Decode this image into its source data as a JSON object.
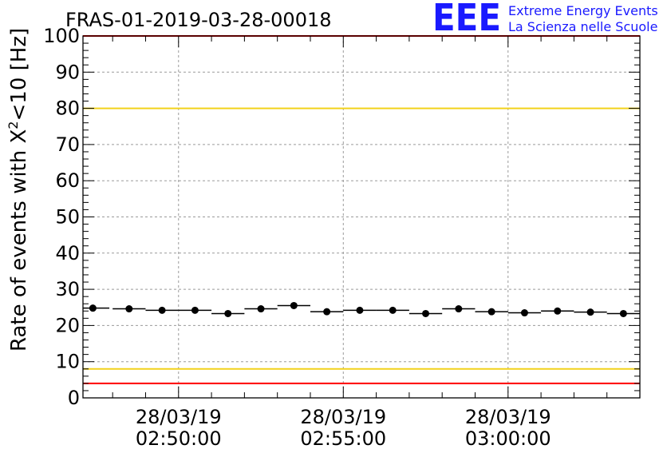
{
  "chart_data": {
    "type": "scatter",
    "title": "FRAS-01-2019-03-28-00018",
    "ylabel": "Rate of events with X²<10 [Hz]",
    "ylabel_parts": {
      "main": "Rate of events with X",
      "sup": "2",
      "tail": "<10 [Hz]"
    },
    "xlabel": "",
    "ylim": [
      0,
      100
    ],
    "yticks": [
      "0",
      "10",
      "20",
      "30",
      "40",
      "50",
      "60",
      "70",
      "80",
      "90",
      "100"
    ],
    "xlim_minutes": [
      -2.9,
      14.0
    ],
    "xtick_labels": [
      {
        "t": 0,
        "date": "28/03/19",
        "time": "02:50:00"
      },
      {
        "t": 5,
        "date": "28/03/19",
        "time": "02:55:00"
      },
      {
        "t": 10,
        "date": "28/03/19",
        "time": "03:00:00"
      }
    ],
    "grid": true,
    "bin_minutes": 1.0,
    "series": [
      {
        "name": "rate",
        "color": "#000000",
        "x": [
          -2.6,
          -1.5,
          -0.5,
          0.5,
          1.5,
          2.5,
          3.5,
          4.5,
          5.5,
          6.5,
          7.5,
          8.5,
          9.5,
          10.5,
          11.5,
          12.5,
          13.5
        ],
        "values": [
          24.8,
          24.6,
          24.2,
          24.2,
          23.3,
          24.6,
          25.5,
          23.8,
          24.2,
          24.2,
          23.3,
          24.6,
          23.8,
          23.5,
          24.0,
          23.7,
          23.3
        ]
      }
    ],
    "reference_lines": [
      {
        "name": "upper-red",
        "value": 100,
        "color": "#ff0000"
      },
      {
        "name": "upper-yellow",
        "value": 80,
        "color": "#f2d21b"
      },
      {
        "name": "lower-yellow",
        "value": 8,
        "color": "#f2d21b"
      },
      {
        "name": "lower-red",
        "value": 4,
        "color": "#ff0000"
      }
    ]
  },
  "logo": {
    "text": "EEE",
    "line1": "Extreme Energy Events",
    "line2": "La Scienza nelle Scuole",
    "color": "#1a1aff"
  },
  "colors": {
    "grid": "#9a9a9a",
    "axis": "#000000"
  }
}
